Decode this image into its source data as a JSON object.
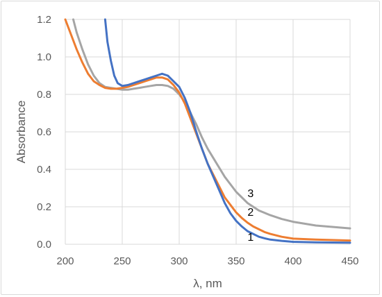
{
  "chart_data": {
    "type": "line",
    "title": "",
    "xlabel": "λ, nm",
    "ylabel": "Absorbance",
    "xlim": [
      200,
      450
    ],
    "ylim": [
      0,
      1.2
    ],
    "x_ticks": [
      "200",
      "250",
      "300",
      "350",
      "400",
      "450"
    ],
    "y_ticks": [
      "0.0",
      "0.2",
      "0.4",
      "0.6",
      "0.8",
      "1.0",
      "1.2"
    ],
    "grid": true,
    "legend": "none",
    "series": [
      {
        "label": "1",
        "color": "#4472c4",
        "x": [
          235,
          237,
          240,
          243,
          246,
          250,
          255,
          260,
          265,
          270,
          275,
          280,
          285,
          290,
          295,
          300,
          305,
          310,
          315,
          320,
          325,
          330,
          335,
          340,
          345,
          350,
          355,
          360,
          365,
          370,
          375,
          380,
          390,
          400,
          420,
          450
        ],
        "y": [
          1.2,
          1.08,
          0.98,
          0.9,
          0.86,
          0.845,
          0.85,
          0.86,
          0.87,
          0.88,
          0.89,
          0.9,
          0.91,
          0.9,
          0.87,
          0.84,
          0.78,
          0.7,
          0.6,
          0.51,
          0.43,
          0.36,
          0.29,
          0.22,
          0.165,
          0.125,
          0.095,
          0.07,
          0.055,
          0.04,
          0.032,
          0.025,
          0.018,
          0.013,
          0.01,
          0.008
        ]
      },
      {
        "label": "2",
        "color": "#ed7d31",
        "x": [
          200,
          205,
          210,
          215,
          220,
          225,
          230,
          235,
          240,
          245,
          250,
          255,
          260,
          265,
          270,
          275,
          280,
          285,
          290,
          295,
          300,
          305,
          310,
          315,
          320,
          325,
          330,
          335,
          340,
          345,
          350,
          355,
          360,
          365,
          370,
          375,
          380,
          390,
          400,
          420,
          450
        ],
        "y": [
          1.2,
          1.12,
          1.04,
          0.97,
          0.91,
          0.87,
          0.85,
          0.835,
          0.83,
          0.83,
          0.835,
          0.84,
          0.85,
          0.86,
          0.87,
          0.88,
          0.89,
          0.89,
          0.88,
          0.85,
          0.81,
          0.75,
          0.67,
          0.59,
          0.51,
          0.43,
          0.37,
          0.31,
          0.25,
          0.21,
          0.17,
          0.14,
          0.115,
          0.095,
          0.08,
          0.065,
          0.055,
          0.04,
          0.03,
          0.025,
          0.02
        ]
      },
      {
        "label": "3",
        "color": "#a5a5a5",
        "x": [
          207,
          210,
          215,
          220,
          225,
          230,
          235,
          240,
          245,
          250,
          255,
          260,
          265,
          270,
          275,
          280,
          285,
          290,
          295,
          300,
          305,
          310,
          315,
          320,
          325,
          330,
          335,
          340,
          345,
          350,
          355,
          360,
          365,
          370,
          380,
          390,
          400,
          420,
          450
        ],
        "y": [
          1.2,
          1.13,
          1.04,
          0.96,
          0.9,
          0.86,
          0.84,
          0.835,
          0.83,
          0.825,
          0.825,
          0.83,
          0.835,
          0.84,
          0.845,
          0.85,
          0.85,
          0.845,
          0.83,
          0.8,
          0.76,
          0.7,
          0.64,
          0.57,
          0.51,
          0.46,
          0.41,
          0.36,
          0.32,
          0.28,
          0.25,
          0.22,
          0.2,
          0.18,
          0.155,
          0.135,
          0.12,
          0.1,
          0.085
        ]
      }
    ]
  }
}
